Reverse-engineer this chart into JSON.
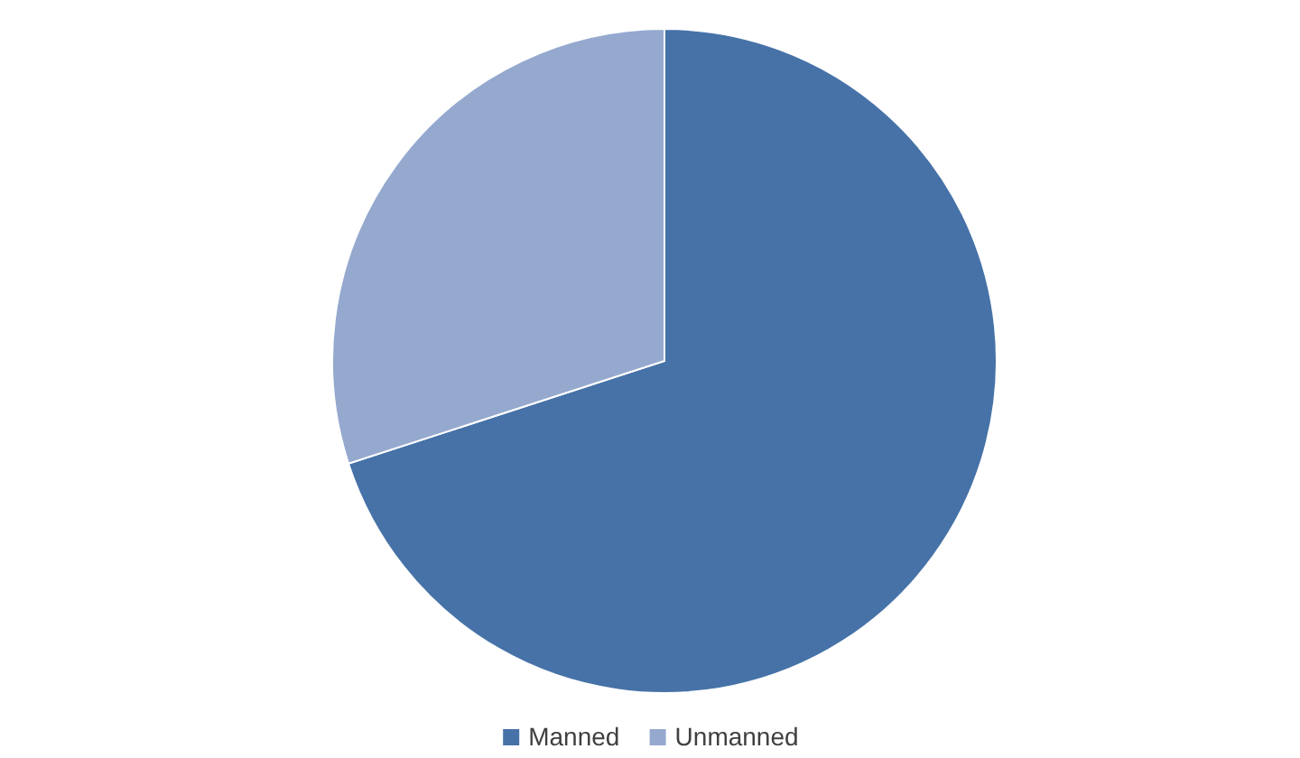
{
  "chart_data": {
    "type": "pie",
    "categories": [
      "Manned",
      "Unmanned"
    ],
    "values": [
      70,
      30
    ],
    "colors": [
      "#4672a8",
      "#95a9cf"
    ],
    "legend": "bottom"
  }
}
